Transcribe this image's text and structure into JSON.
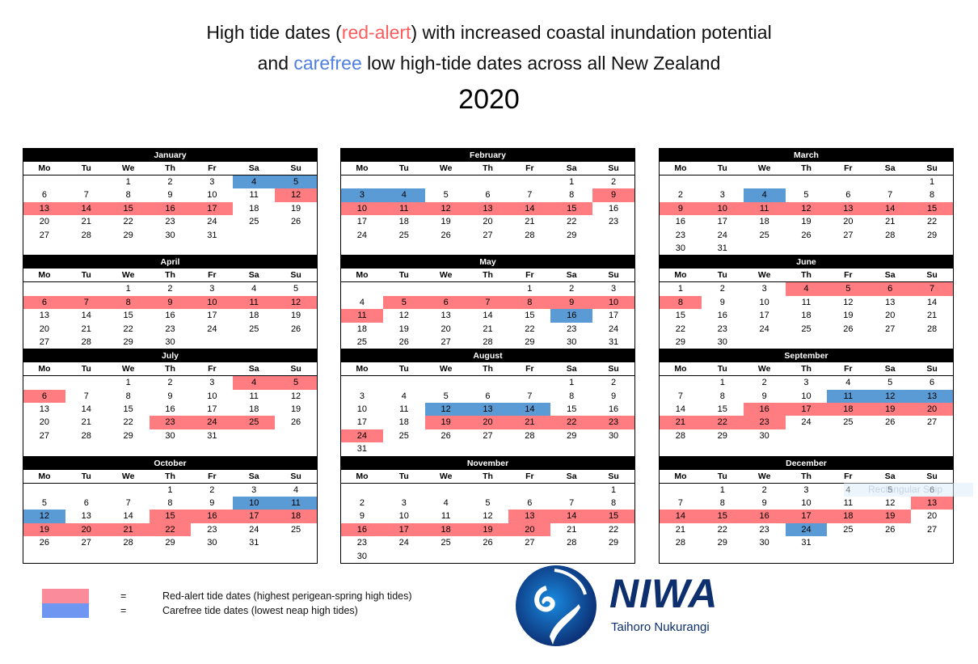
{
  "title": {
    "line1_a": "High tide dates (",
    "line1_red": "red-alert",
    "line1_b": ") with increased coastal inundation potential",
    "line2_a": "and ",
    "line2_blue": "carefree",
    "line2_b": " low high-tide dates across all New Zealand",
    "year": "2020"
  },
  "weekdays": [
    "Mo",
    "Tu",
    "We",
    "Th",
    "Fr",
    "Sa",
    "Su"
  ],
  "colors": {
    "red_alert": "#ff7c80",
    "carefree": "#5b9bd5"
  },
  "months": [
    {
      "name": "January",
      "start": 2,
      "days": 31,
      "red": [
        12,
        13,
        14,
        15,
        16,
        17
      ],
      "blue": [
        4,
        5
      ]
    },
    {
      "name": "February",
      "start": 5,
      "days": 29,
      "red": [
        9,
        10,
        11,
        12,
        13,
        14,
        15
      ],
      "blue": [
        3,
        4
      ]
    },
    {
      "name": "March",
      "start": 6,
      "days": 31,
      "red": [
        9,
        10,
        11,
        12,
        13,
        14,
        15
      ],
      "blue": [
        4
      ]
    },
    {
      "name": "April",
      "start": 2,
      "days": 30,
      "red": [
        6,
        7,
        8,
        9,
        10,
        11,
        12
      ],
      "blue": []
    },
    {
      "name": "May",
      "start": 4,
      "days": 31,
      "red": [
        5,
        6,
        7,
        8,
        9,
        10,
        11
      ],
      "blue": [
        16
      ]
    },
    {
      "name": "June",
      "start": 0,
      "days": 30,
      "red": [
        4,
        5,
        6,
        7,
        8
      ],
      "blue": []
    },
    {
      "name": "July",
      "start": 2,
      "days": 31,
      "red": [
        4,
        5,
        6,
        23,
        24,
        25
      ],
      "blue": []
    },
    {
      "name": "August",
      "start": 5,
      "days": 31,
      "red": [
        19,
        20,
        21,
        22,
        23,
        24
      ],
      "blue": [
        12,
        13,
        14
      ]
    },
    {
      "name": "September",
      "start": 1,
      "days": 30,
      "red": [
        16,
        17,
        18,
        19,
        20,
        21,
        22,
        23
      ],
      "blue": [
        11,
        12,
        13
      ]
    },
    {
      "name": "October",
      "start": 3,
      "days": 31,
      "red": [
        15,
        16,
        17,
        18,
        19,
        20,
        21,
        22
      ],
      "blue": [
        10,
        11,
        12
      ]
    },
    {
      "name": "November",
      "start": 6,
      "days": 30,
      "red": [
        13,
        14,
        15,
        16,
        17,
        18,
        19,
        20
      ],
      "blue": []
    },
    {
      "name": "December",
      "start": 1,
      "days": 31,
      "red": [
        13,
        14,
        15,
        16,
        17,
        18,
        19
      ],
      "blue": [
        24
      ]
    }
  ],
  "legend": {
    "eq": "=",
    "red_label": "Red-alert tide dates (highest perigean-spring high tides)",
    "blue_label": "Carefree tide dates (lowest neap high tides)"
  },
  "logo": {
    "name": "NIWA",
    "tagline": "Taihoro Nukurangi"
  },
  "overlay": {
    "snip": "Rectangular Snip"
  }
}
